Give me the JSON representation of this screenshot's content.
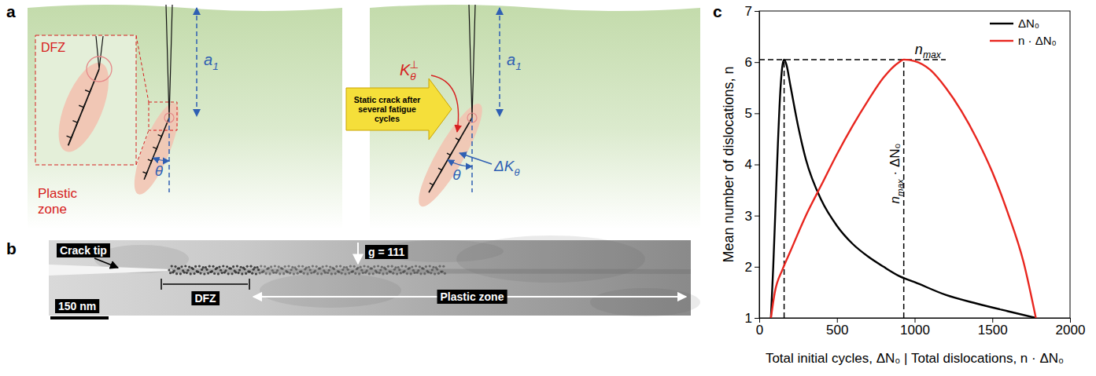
{
  "figure": {
    "panel_a": {
      "letter": "a",
      "dfz": "DFZ",
      "plastic_zone": "Plastic zone",
      "crack_length": {
        "base": "a",
        "sub": "1"
      },
      "angle": "θ",
      "transition": "Static crack after several fatigue cycles",
      "k_perp": {
        "base": "K",
        "sub": "θ",
        "sup": "⊥"
      },
      "delta_k": {
        "base": "ΔK",
        "sub": "θ"
      }
    },
    "panel_b": {
      "letter": "b",
      "crack_tip": "Crack tip",
      "dfz": "DFZ",
      "g_vector": "g = 111",
      "plastic_zone": "Plastic zone",
      "scale_bar": "150 nm"
    }
  },
  "chart_data": {
    "type": "line",
    "letter": "c",
    "x_label": "Total initial cycles, ΔN₀ | Total dislocations, n · ΔN₀",
    "y_label": "Mean number of dislocations, n",
    "xlim": [
      0,
      2000
    ],
    "ylim": [
      1,
      7
    ],
    "xticks": [
      0,
      500,
      1000,
      1500,
      2000
    ],
    "yticks": [
      1,
      2,
      3,
      4,
      5,
      6,
      7
    ],
    "grid": false,
    "legend": "top-right",
    "series": [
      {
        "name": "ΔN₀",
        "color": "#000000",
        "x": [
          75,
          90,
          105,
          120,
          135,
          150,
          160,
          175,
          200,
          250,
          300,
          400,
          500,
          600,
          700,
          800,
          900,
          1000,
          1200,
          1400,
          1600,
          1780
        ],
        "values": [
          1,
          2.0,
          3.2,
          4.4,
          5.4,
          5.95,
          6.05,
          5.95,
          5.55,
          4.75,
          4.1,
          3.3,
          2.8,
          2.45,
          2.2,
          2.0,
          1.82,
          1.7,
          1.45,
          1.28,
          1.13,
          1.0
        ]
      },
      {
        "name": "n · ΔN₀",
        "color": "#e8261f",
        "x": [
          75,
          100,
          150,
          200,
          300,
          400,
          500,
          600,
          700,
          800,
          900,
          930,
          1000,
          1100,
          1200,
          1300,
          1400,
          1500,
          1600,
          1700,
          1780
        ],
        "values": [
          1,
          1.5,
          1.95,
          2.3,
          3.0,
          3.6,
          4.2,
          4.75,
          5.25,
          5.7,
          6.0,
          6.05,
          6.02,
          5.85,
          5.5,
          5.05,
          4.5,
          3.85,
          3.05,
          2.1,
          1.0
        ]
      }
    ],
    "annotations": [
      {
        "type": "hline",
        "y": 6.05,
        "x_end": 1200,
        "label": {
          "base": "n",
          "sub": "max"
        }
      },
      {
        "type": "vline",
        "x": 160,
        "y_end": 6.05
      },
      {
        "type": "vline",
        "x": 930,
        "y_end": 6.05,
        "label": {
          "base": "n",
          "sub": "max",
          "after": " · ΔN₀"
        }
      }
    ]
  }
}
